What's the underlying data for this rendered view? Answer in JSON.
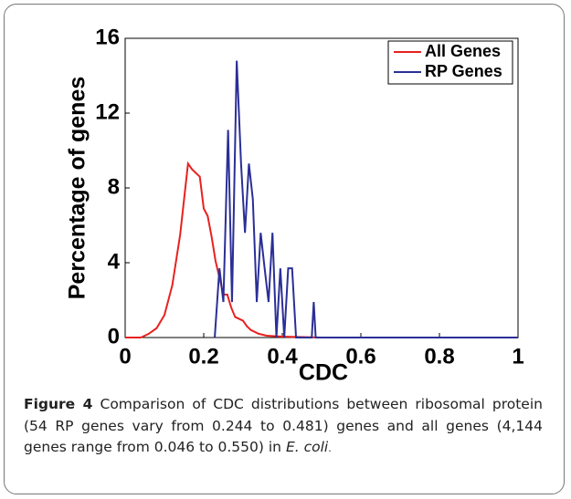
{
  "chart_data": {
    "type": "line",
    "xlabel": "CDC",
    "ylabel": "Percentage of genes",
    "xlim": [
      0,
      1
    ],
    "xticks": [
      0,
      0.2,
      0.4,
      0.6,
      0.8,
      1
    ],
    "ylim": [
      0,
      16
    ],
    "yticks": [
      0,
      4,
      8,
      12,
      16
    ],
    "legend": "upper right",
    "series": [
      {
        "name": "All Genes",
        "color": "#e8211f",
        "x": [
          0,
          0.04,
          0.06,
          0.08,
          0.1,
          0.12,
          0.14,
          0.16,
          0.17,
          0.18,
          0.19,
          0.2,
          0.21,
          0.22,
          0.23,
          0.24,
          0.25,
          0.26,
          0.27,
          0.28,
          0.3,
          0.31,
          0.32,
          0.34,
          0.36,
          0.4,
          0.5,
          1
        ],
        "values": [
          0,
          0,
          0.2,
          0.5,
          1.2,
          2.8,
          5.5,
          9.3,
          9.0,
          8.8,
          8.6,
          6.9,
          6.5,
          5.4,
          4.1,
          3.2,
          2.3,
          2.3,
          1.6,
          1.1,
          0.9,
          0.6,
          0.4,
          0.2,
          0.1,
          0.05,
          0,
          0
        ]
      },
      {
        "name": "RP Genes",
        "color": "#2b2f96",
        "x": [
          0.228,
          0.24,
          0.25,
          0.262,
          0.272,
          0.284,
          0.295,
          0.305,
          0.315,
          0.325,
          0.335,
          0.345,
          0.355,
          0.365,
          0.375,
          0.385,
          0.395,
          0.405,
          0.415,
          0.425,
          0.435,
          0.475,
          0.48,
          0.485,
          1
        ],
        "values": [
          0,
          3.7,
          1.9,
          11.1,
          1.9,
          14.8,
          9.3,
          5.6,
          9.3,
          7.4,
          1.9,
          5.6,
          3.7,
          1.9,
          5.6,
          0,
          3.7,
          0,
          3.7,
          3.7,
          0,
          0,
          1.9,
          0,
          0
        ]
      }
    ]
  },
  "caption": {
    "label": "Figure 4",
    "text": "Comparison of CDC distributions between ribosomal protein (54 RP genes vary from 0.244 to 0.481) genes and all genes (4,144 genes range from 0.046 to 0.550) in ",
    "species": "E. coli",
    "end": "."
  }
}
